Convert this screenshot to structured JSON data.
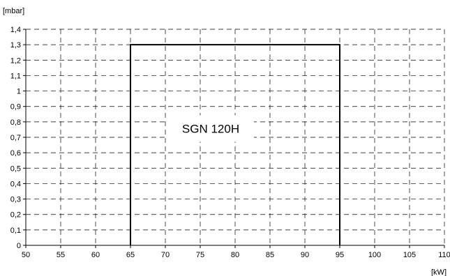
{
  "chart_data": {
    "type": "line",
    "title": "",
    "xlabel": "[kW]",
    "ylabel": "[mbar]",
    "xlim": [
      50,
      110
    ],
    "ylim": [
      0,
      1.4
    ],
    "grid": true,
    "x_ticks": [
      "50",
      "55",
      "60",
      "65",
      "70",
      "75",
      "80",
      "85",
      "90",
      "95",
      "100",
      "105",
      "110"
    ],
    "y_ticks": [
      "0",
      "0,1",
      "0,2",
      "0,3",
      "0,4",
      "0,5",
      "0,6",
      "0,7",
      "0,8",
      "0,9",
      "1",
      "1,1",
      "1,2",
      "1,3",
      "1,4"
    ],
    "series": [
      {
        "x": [
          65,
          65,
          95,
          95
        ],
        "y": [
          0,
          1.3,
          1.3,
          0
        ]
      }
    ],
    "annotations": [
      {
        "text": "SGN 120H",
        "x": 76.5,
        "y": 0.73
      }
    ]
  }
}
